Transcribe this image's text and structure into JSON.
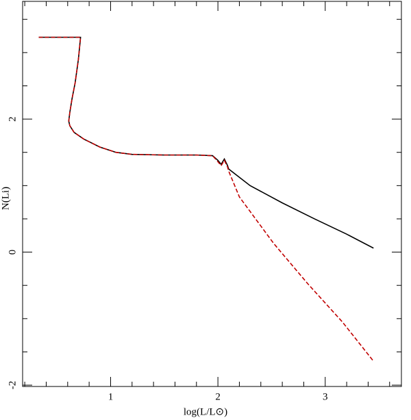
{
  "chart_data": {
    "type": "line",
    "xlabel": "log(L/L⊙)",
    "ylabel": "N(Li)",
    "xlim": [
      0.18,
      3.71
    ],
    "ylim": [
      -2.02,
      3.77
    ],
    "xticks": [
      1,
      2,
      3
    ],
    "yticks": [
      -2,
      0,
      2
    ],
    "xminorticks": [
      0.2,
      0.4,
      0.6,
      0.8,
      1.2,
      1.4,
      1.6,
      1.8,
      2.2,
      2.4,
      2.6,
      2.8,
      3.2,
      3.4,
      3.6
    ],
    "yminorticks": [
      -1.5,
      -1,
      -0.5,
      0.5,
      1,
      1.5,
      2.5,
      3,
      3.5
    ],
    "series": [
      {
        "color": "#000000",
        "linestyle": "solid",
        "x": [
          0.33,
          0.72,
          0.7,
          0.67,
          0.64,
          0.62,
          0.61,
          0.62,
          0.66,
          0.75,
          0.9,
          1.05,
          1.2,
          1.5,
          1.8,
          1.95,
          2.0,
          2.03,
          2.06,
          2.09,
          2.1,
          2.3,
          2.6,
          2.9,
          3.2,
          3.45
        ],
        "y": [
          3.23,
          3.23,
          2.9,
          2.55,
          2.3,
          2.1,
          1.97,
          1.9,
          1.8,
          1.7,
          1.58,
          1.5,
          1.47,
          1.46,
          1.46,
          1.45,
          1.38,
          1.32,
          1.4,
          1.3,
          1.25,
          1.0,
          0.74,
          0.5,
          0.27,
          0.06
        ]
      },
      {
        "color": "#c00000",
        "linestyle": "dashed",
        "x": [
          0.33,
          0.72,
          0.7,
          0.67,
          0.64,
          0.62,
          0.61,
          0.62,
          0.66,
          0.75,
          0.9,
          1.05,
          1.2,
          1.5,
          1.8,
          1.95,
          2.0,
          2.03,
          2.06,
          2.09,
          2.1,
          2.2,
          2.52,
          2.84,
          3.16,
          3.45
        ],
        "y": [
          3.23,
          3.23,
          2.9,
          2.55,
          2.3,
          2.1,
          1.97,
          1.9,
          1.8,
          1.7,
          1.58,
          1.5,
          1.47,
          1.46,
          1.46,
          1.45,
          1.36,
          1.3,
          1.38,
          1.28,
          1.22,
          0.83,
          0.13,
          -0.48,
          -1.05,
          -1.64
        ]
      }
    ]
  }
}
